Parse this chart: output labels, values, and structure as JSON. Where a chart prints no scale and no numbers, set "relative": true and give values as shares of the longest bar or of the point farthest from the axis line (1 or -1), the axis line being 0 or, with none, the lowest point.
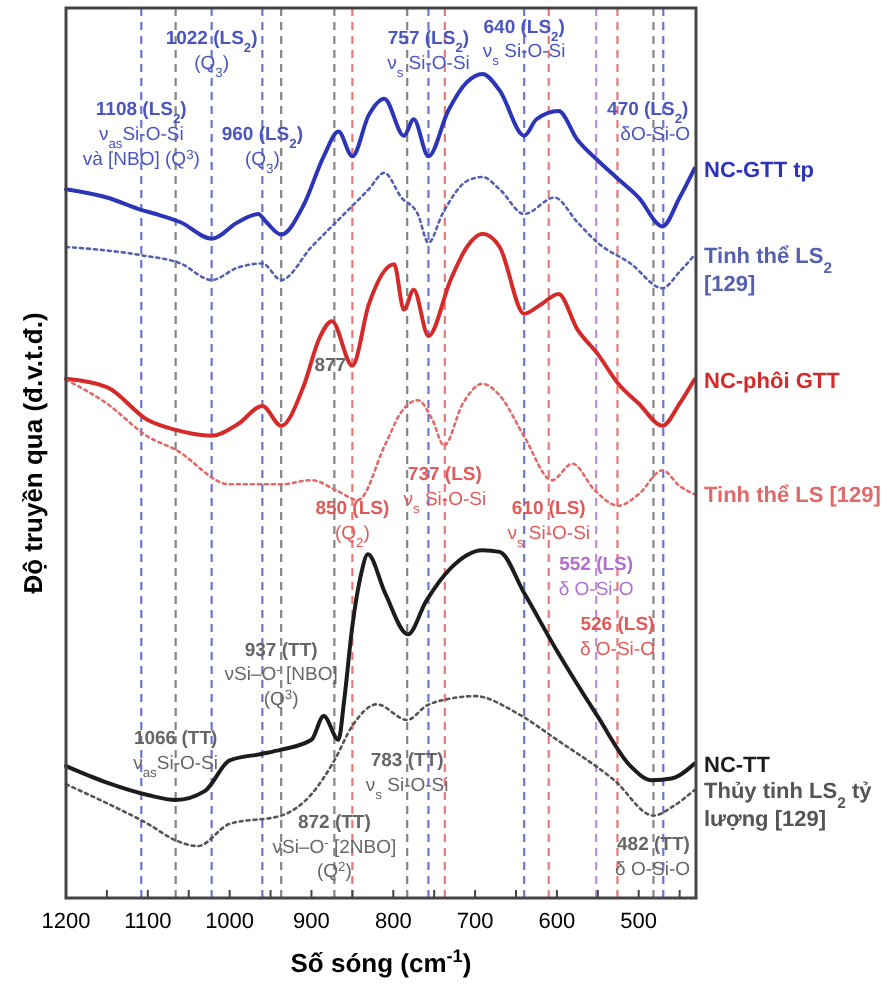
{
  "chart_data": {
    "type": "line",
    "relative": true,
    "xlabel": "Số sóng (cm$^{-1}$)",
    "ylabel": "Độ truyền qua (đ.v.t.đ.)",
    "xlim": [
      1200,
      430
    ],
    "xticks": [
      1200,
      {
        "value": 1150,
        "label": null
      },
      1100,
      {
        "value": 1050,
        "label": null
      },
      1000,
      {
        "value": 950,
        "label": null
      },
      900,
      {
        "value": 850,
        "label": null
      },
      800,
      {
        "value": 750,
        "label": null
      },
      700,
      {
        "value": 650,
        "label": null
      },
      600,
      {
        "value": 550,
        "label": null
      },
      500,
      {
        "value": 450,
        "label": null
      }
    ],
    "legend": "right",
    "marker": "none",
    "series": [
      {
        "name": "NC-GTT tp",
        "color": "#2b35b5",
        "line_style": "solid",
        "x": [
          1200,
          1150,
          1108,
          1090,
          1060,
          1022,
          990,
          965,
          955,
          937,
          910,
          885,
          867,
          850,
          830,
          811,
          787,
          775,
          757,
          733,
          710,
          691,
          670,
          640,
          625,
          598,
          575,
          550,
          528,
          500,
          471,
          450,
          432
        ],
        "values": [
          0.86,
          0.85,
          0.835,
          0.83,
          0.82,
          0.8,
          0.82,
          0.83,
          0.82,
          0.805,
          0.84,
          0.9,
          0.93,
          0.9,
          0.95,
          0.97,
          0.925,
          0.945,
          0.9,
          0.955,
          0.99,
          1.0,
          0.98,
          0.925,
          0.945,
          0.955,
          0.92,
          0.895,
          0.875,
          0.85,
          0.815,
          0.85,
          0.885
        ]
      },
      {
        "name": "Tinh thể LS$_{2}$ [129]",
        "color": "#5560b0",
        "line_style": "dotted",
        "x": [
          1200,
          1108,
          1060,
          1022,
          990,
          960,
          937,
          900,
          860,
          830,
          811,
          790,
          770,
          757,
          740,
          710,
          691,
          670,
          640,
          603,
          575,
          550,
          510,
          471,
          450,
          432
        ],
        "values": [
          0.79,
          0.78,
          0.77,
          0.75,
          0.765,
          0.77,
          0.75,
          0.79,
          0.83,
          0.86,
          0.88,
          0.85,
          0.83,
          0.795,
          0.83,
          0.87,
          0.875,
          0.86,
          0.83,
          0.85,
          0.82,
          0.795,
          0.77,
          0.74,
          0.76,
          0.78
        ]
      },
      {
        "name": "NC-phôi GTT",
        "color": "#d42a2a",
        "line_style": "solid",
        "x": [
          1200,
          1150,
          1100,
          1066,
          1022,
          990,
          960,
          937,
          910,
          890,
          875,
          850,
          830,
          799,
          787,
          775,
          757,
          730,
          710,
          691,
          670,
          640,
          620,
          598,
          575,
          550,
          525,
          500,
          471,
          450,
          432
        ],
        "values": [
          0.63,
          0.62,
          0.58,
          0.568,
          0.561,
          0.575,
          0.597,
          0.573,
          0.62,
          0.68,
          0.7,
          0.646,
          0.72,
          0.769,
          0.714,
          0.738,
          0.682,
          0.75,
          0.79,
          0.806,
          0.79,
          0.709,
          0.72,
          0.733,
          0.69,
          0.66,
          0.624,
          0.6,
          0.573,
          0.6,
          0.629
        ]
      },
      {
        "name": "Tinh thể LS [129]",
        "color": "#e06a6a",
        "line_style": "dotted",
        "x": [
          1200,
          1150,
          1100,
          1066,
          1000,
          937,
          900,
          870,
          843,
          810,
          790,
          770,
          752,
          738,
          715,
          691,
          670,
          640,
          606,
          581,
          554,
          525,
          500,
          471,
          450,
          432
        ],
        "values": [
          0.629,
          0.6,
          0.56,
          0.544,
          0.502,
          0.502,
          0.507,
          0.495,
          0.483,
          0.55,
          0.59,
          0.604,
          0.58,
          0.549,
          0.6,
          0.624,
          0.61,
          0.56,
          0.507,
          0.527,
          0.495,
          0.476,
          0.49,
          0.519,
          0.5,
          0.49
        ]
      },
      {
        "name": "NC-TT",
        "color": "#1c1c1c",
        "line_style": "solid",
        "x": [
          1200,
          1150,
          1100,
          1066,
          1030,
          1000,
          960,
          937,
          900,
          885,
          867,
          860,
          850,
          840,
          831,
          810,
          782,
          760,
          730,
          691,
          670,
          640,
          600,
          550,
          510,
          484,
          460,
          432
        ],
        "values": [
          0.16,
          0.14,
          0.125,
          0.119,
          0.13,
          0.167,
          0.175,
          0.18,
          0.192,
          0.221,
          0.192,
          0.24,
          0.33,
          0.39,
          0.417,
          0.37,
          0.32,
          0.36,
          0.4,
          0.422,
          0.42,
          0.37,
          0.3,
          0.22,
          0.16,
          0.143,
          0.145,
          0.163
        ]
      },
      {
        "name": "Thủy tinh LS$_{2}$ tỷ lượng [129]",
        "color": "#555555",
        "line_style": "dotted",
        "x": [
          1200,
          1150,
          1100,
          1066,
          1039,
          1000,
          937,
          900,
          872,
          850,
          820,
          783,
          760,
          730,
          700,
          650,
          600,
          530,
          482,
          460,
          432
        ],
        "values": [
          0.138,
          0.115,
          0.09,
          0.07,
          0.063,
          0.09,
          0.1,
          0.126,
          0.167,
          0.209,
          0.235,
          0.216,
          0.233,
          0.242,
          0.245,
          0.225,
          0.192,
          0.143,
          0.1,
          0.11,
          0.131
        ]
      }
    ],
    "ref_lines": [
      {
        "axis": "x",
        "value": 1108,
        "color": "#4a55c0",
        "line_style": "dashed"
      },
      {
        "axis": "x",
        "value": 1066,
        "color": "#666666",
        "line_style": "dashed"
      },
      {
        "axis": "x",
        "value": 1022,
        "color": "#4a55c0",
        "line_style": "dashed"
      },
      {
        "axis": "x",
        "value": 960,
        "color": "#4a55c0",
        "line_style": "dashed"
      },
      {
        "axis": "x",
        "value": 937,
        "color": "#666666",
        "line_style": "dashed"
      },
      {
        "axis": "x",
        "value": 872,
        "color": "#666666",
        "line_style": "dashed"
      },
      {
        "axis": "x",
        "value": 850,
        "color": "#e05a5a",
        "line_style": "dashed"
      },
      {
        "axis": "x",
        "value": 783,
        "color": "#666666",
        "line_style": "dashed"
      },
      {
        "axis": "x",
        "value": 757,
        "color": "#4a55c0",
        "line_style": "dashed"
      },
      {
        "axis": "x",
        "value": 737,
        "color": "#e05a5a",
        "line_style": "dashed"
      },
      {
        "axis": "x",
        "value": 640,
        "color": "#4a55c0",
        "line_style": "dashed"
      },
      {
        "axis": "x",
        "value": 610,
        "color": "#e05a5a",
        "line_style": "dashed"
      },
      {
        "axis": "x",
        "value": 552,
        "color": "#b070d0",
        "line_style": "dashed"
      },
      {
        "axis": "x",
        "value": 526,
        "color": "#e05a5a",
        "line_style": "dashed"
      },
      {
        "axis": "x",
        "value": 482,
        "color": "#666666",
        "line_style": "dashed"
      },
      {
        "axis": "x",
        "value": 470,
        "color": "#4a55c0",
        "line_style": "dashed"
      }
    ],
    "annotations": [
      {
        "text": "1108 (LS$_{2}$)",
        "x": 1108,
        "y": 0.95
      },
      {
        "text": "ν$_{as}$Si-O-Si",
        "x": 1108,
        "y": 0.92
      },
      {
        "text": "và [NBO] (Q$^{3}$)",
        "x": 1108,
        "y": 0.89
      },
      {
        "text": "1022 (LS$_{2}$)",
        "x": 1022,
        "y": 1.036
      },
      {
        "text": "(Q$_{3}$)",
        "x": 1022,
        "y": 1.006
      },
      {
        "text": "960 (LS$_{2}$)",
        "x": 960,
        "y": 0.92
      },
      {
        "text": "(Q$_{3}$)",
        "x": 960,
        "y": 0.89
      },
      {
        "text": "757 (LS$_{2}$)",
        "x": 757,
        "y": 1.036
      },
      {
        "text": "ν$_{s}$ Si-O-Si",
        "x": 757,
        "y": 1.006
      },
      {
        "text": "640 (LS$_{2}$)",
        "x": 640,
        "y": 1.05
      },
      {
        "text": "ν$_{s}$ Si-O-Si",
        "x": 640,
        "y": 1.02
      },
      {
        "text": "470 (LS$_{2}$)",
        "x": 470,
        "y": 0.95
      },
      {
        "text": "δO-Si-O",
        "x": 470,
        "y": 0.92
      },
      {
        "text": "877",
        "x": 877,
        "y": 0.64
      },
      {
        "text": "850 (LS)",
        "x": 850,
        "y": 0.466
      },
      {
        "text": "(Q$_{2}$)",
        "x": 850,
        "y": 0.436
      },
      {
        "text": "737 (LS)",
        "x": 737,
        "y": 0.507
      },
      {
        "text": "ν$_{s}$ Si-O-Si",
        "x": 737,
        "y": 0.477
      },
      {
        "text": "610 (LS)",
        "x": 610,
        "y": 0.466
      },
      {
        "text": "ν$_{s}$ Si-O-Si",
        "x": 610,
        "y": 0.436
      },
      {
        "text": "552 (LS)",
        "x": 552,
        "y": 0.398
      },
      {
        "text": "δ O-Si-O",
        "x": 552,
        "y": 0.368
      },
      {
        "text": "526 (LS)",
        "x": 526,
        "y": 0.325
      },
      {
        "text": "δ O-Si-O",
        "x": 526,
        "y": 0.295
      },
      {
        "text": "937 (TT)",
        "x": 937,
        "y": 0.294
      },
      {
        "text": "νSi–O$^{-}$ [NBO]",
        "x": 937,
        "y": 0.264
      },
      {
        "text": "(Q$^{3}$)",
        "x": 937,
        "y": 0.234
      },
      {
        "text": "1066 (TT)",
        "x": 1066,
        "y": 0.187
      },
      {
        "text": "ν$_{as}$Si-O-Si",
        "x": 1066,
        "y": 0.157
      },
      {
        "text": "872 (TT)",
        "x": 872,
        "y": 0.085
      },
      {
        "text": "νSi–O$^{-}$ [2NBO]",
        "x": 872,
        "y": 0.055
      },
      {
        "text": "(Q$^{2}$)",
        "x": 872,
        "y": 0.025
      },
      {
        "text": "783 (TT)",
        "x": 783,
        "y": 0.16
      },
      {
        "text": "ν$_{s}$ Si-O-Si",
        "x": 783,
        "y": 0.13
      },
      {
        "text": "482 (TT)",
        "x": 482,
        "y": 0.058
      },
      {
        "text": "δ O-Si-O",
        "x": 482,
        "y": 0.028
      }
    ]
  }
}
